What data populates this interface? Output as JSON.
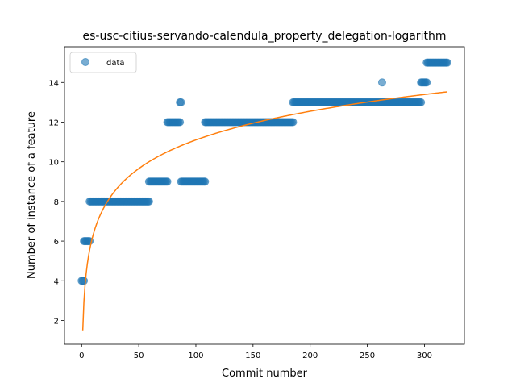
{
  "chart_data": {
    "type": "scatter",
    "title": "es-usc-citius-servando-calendula_property_delegation-logarithm",
    "xlabel": "Commit number",
    "ylabel": "Number of instance of a feature",
    "xlim": [
      -15,
      335
    ],
    "ylim": [
      0.8,
      15.8
    ],
    "xticks": [
      0,
      50,
      100,
      150,
      200,
      250,
      300
    ],
    "yticks": [
      2,
      4,
      6,
      8,
      10,
      12,
      14
    ],
    "grid": false,
    "legend": {
      "position": "top-left",
      "entries": [
        "data"
      ]
    },
    "colors": {
      "data": "#1f77b4",
      "fit": "#ff7f0e"
    },
    "series": [
      {
        "name": "data",
        "kind": "scatter",
        "segments": [
          {
            "x_start": 0,
            "x_end": 2,
            "y": 4
          },
          {
            "x_start": 2,
            "x_end": 7,
            "y": 6
          },
          {
            "x_start": 7,
            "x_end": 59,
            "y": 8
          },
          {
            "x_start": 59,
            "x_end": 75,
            "y": 9
          },
          {
            "x_start": 75,
            "x_end": 86,
            "y": 12
          },
          {
            "x_start": 86,
            "x_end": 87,
            "y": 13
          },
          {
            "x_start": 87,
            "x_end": 108,
            "y": 9
          },
          {
            "x_start": 108,
            "x_end": 185,
            "y": 12
          },
          {
            "x_start": 185,
            "x_end": 297,
            "y": 13
          },
          {
            "x_start": 263,
            "x_end": 263,
            "y": 14
          },
          {
            "x_start": 297,
            "x_end": 302,
            "y": 14
          },
          {
            "x_start": 302,
            "x_end": 320,
            "y": 15
          }
        ]
      },
      {
        "kind": "line",
        "function": "logarithm",
        "a": 1.5,
        "b": 2.085,
        "x_range": [
          1,
          320
        ]
      }
    ]
  }
}
